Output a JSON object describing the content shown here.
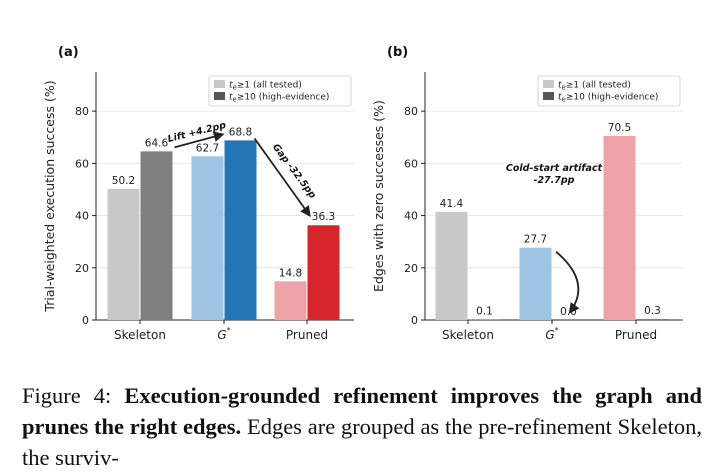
{
  "chart_data": [
    {
      "type": "bar",
      "panel_label": "(a)",
      "ylabel": "Trial-weighted execution success (%)",
      "categories": [
        "Skeleton",
        "G*",
        "Pruned"
      ],
      "category_display": [
        "Skeleton",
        "G",
        "Pruned"
      ],
      "ylim": [
        0,
        95
      ],
      "yticks": [
        0,
        20,
        40,
        60,
        80
      ],
      "grid": true,
      "legend_position": "top-right",
      "series": [
        {
          "name": "t_e≥1 (all tested)",
          "values": [
            50.2,
            62.7,
            14.8
          ],
          "colors": [
            "#c8c8c8",
            "#9fc3e2",
            "#f0a3a6"
          ]
        },
        {
          "name": "t_e≥10 (high-evidence)",
          "values": [
            64.6,
            68.8,
            36.3
          ],
          "colors": [
            "#7f7f7f",
            "#2276b6",
            "#d7262b"
          ]
        }
      ],
      "data_labels": [
        [
          "50.2",
          "62.7",
          "14.8"
        ],
        [
          "64.6",
          "68.8",
          "36.3"
        ]
      ],
      "annotations": [
        {
          "text": "Lift +4.2pp",
          "from": "Skeleton high-evidence",
          "to": "G* high-evidence"
        },
        {
          "text": "Gap -32.5pp",
          "from": "G* high-evidence",
          "to": "Pruned high-evidence"
        }
      ]
    },
    {
      "type": "bar",
      "panel_label": "(b)",
      "ylabel": "Edges with zero successes (%)",
      "categories": [
        "Skeleton",
        "G*",
        "Pruned"
      ],
      "category_display": [
        "Skeleton",
        "G",
        "Pruned"
      ],
      "ylim": [
        0,
        95
      ],
      "yticks": [
        0,
        20,
        40,
        60,
        80
      ],
      "grid": true,
      "legend_position": "top-right",
      "series": [
        {
          "name": "t_e≥1 (all tested)",
          "values": [
            41.4,
            27.7,
            70.5
          ],
          "colors": [
            "#c8c8c8",
            "#9fc3e2",
            "#f0a3a6"
          ]
        },
        {
          "name": "t_e≥10 (high-evidence)",
          "values": [
            0.1,
            0.0,
            0.3
          ],
          "colors": [
            "#7f7f7f",
            "#2276b6",
            "#d7262b"
          ]
        }
      ],
      "data_labels": [
        [
          "41.4",
          "27.7",
          "70.5"
        ],
        [
          "0.1",
          "0.0",
          "0.3"
        ]
      ],
      "annotations": [
        {
          "text_line1": "Cold-start artifact",
          "text_line2": "-27.7pp",
          "from": "G* all tested",
          "to": "G* high-evidence"
        }
      ]
    }
  ],
  "caption": {
    "prefix": "Figure 4: ",
    "bold": "Execution-grounded refinement improves the graph and prunes the right edges.",
    "rest": " Edges are grouped as the pre-refinement Skeleton, the surviv-"
  }
}
